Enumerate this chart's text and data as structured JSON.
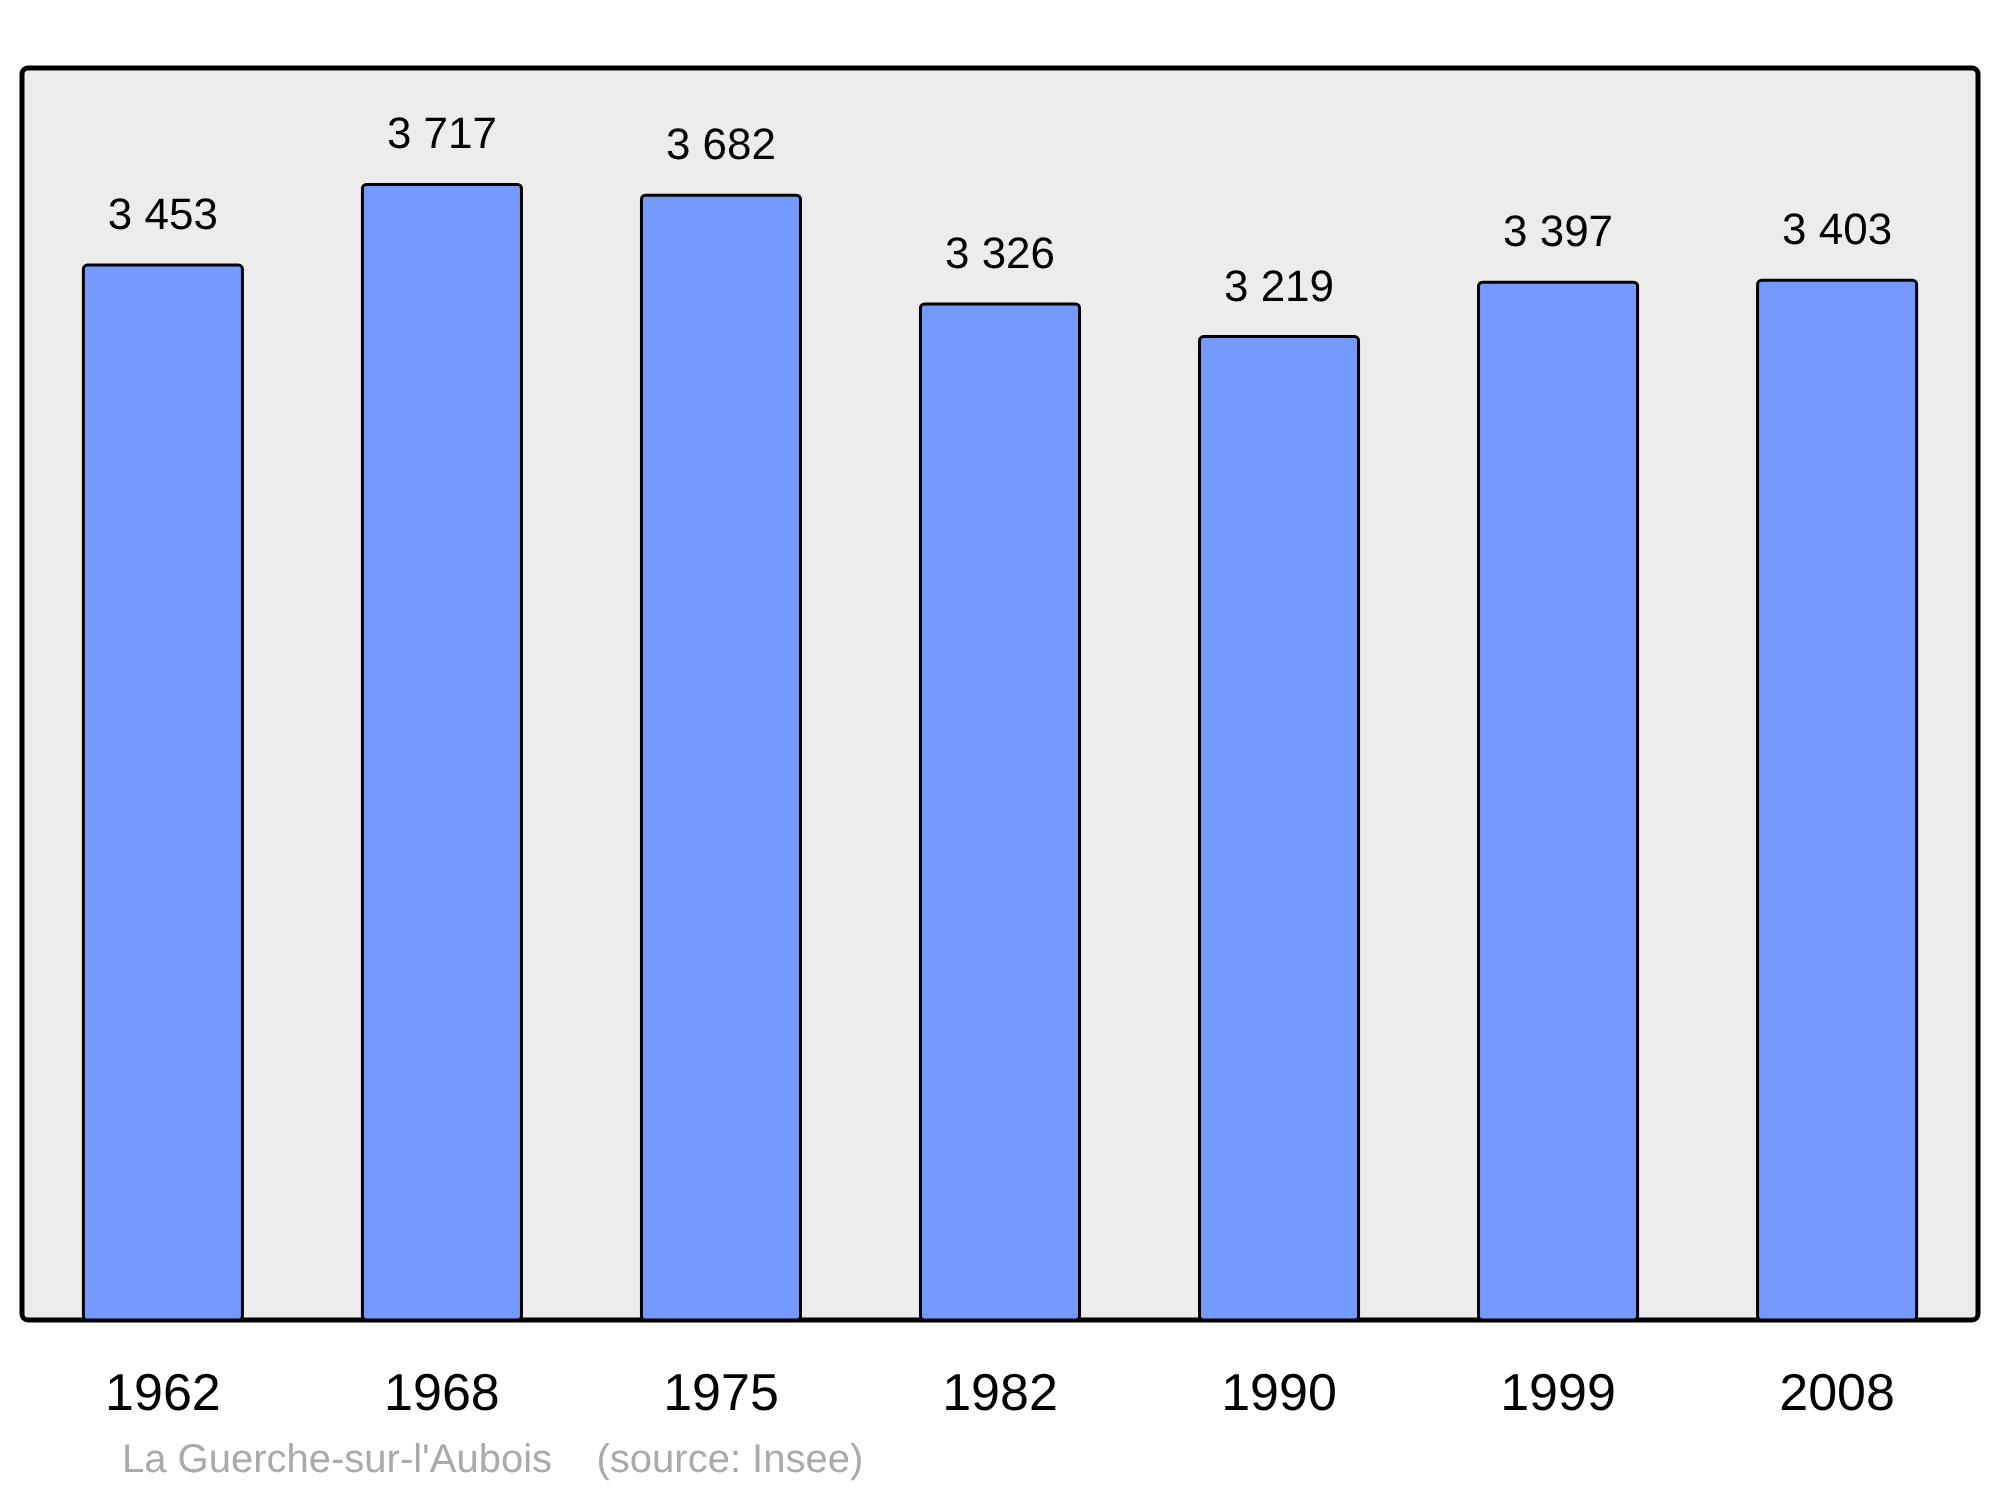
{
  "chart_data": {
    "type": "bar",
    "categories": [
      "1962",
      "1968",
      "1975",
      "1982",
      "1990",
      "1999",
      "2008"
    ],
    "values": [
      3453,
      3717,
      3682,
      3326,
      3219,
      3397,
      3403
    ],
    "value_labels": [
      "3 453",
      "3 717",
      "3 682",
      "3 326",
      "3 219",
      "3 397",
      "3 403"
    ],
    "color": "#7499ff",
    "annotations": [
      "La Guerche-sur-l'Aubois    (source: Insee)"
    ]
  }
}
